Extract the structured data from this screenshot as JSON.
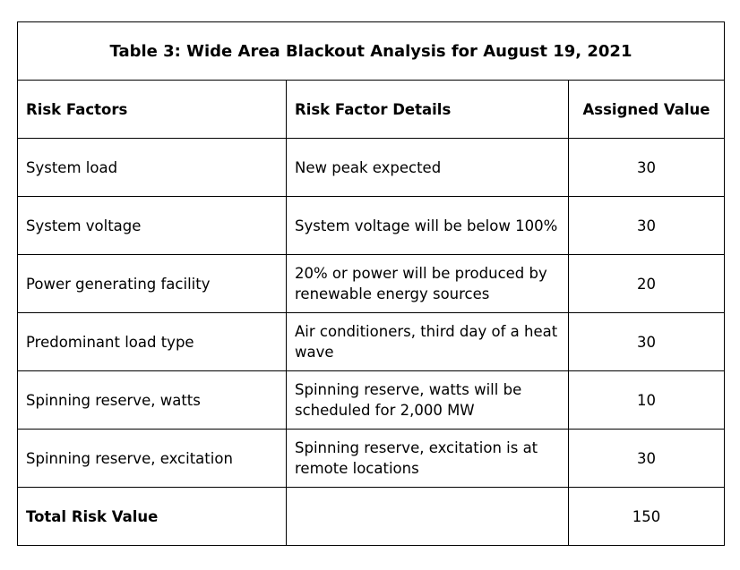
{
  "table": {
    "title": "Table 3: Wide Area Blackout Analysis for August 19, 2021",
    "headers": [
      "Risk Factors",
      "Risk Factor Details",
      "Assigned Value"
    ],
    "rows": [
      {
        "factor": "System load",
        "details": "New peak expected",
        "value": "30"
      },
      {
        "factor": "System voltage",
        "details": "System voltage will be below 100%",
        "value": "30"
      },
      {
        "factor": "Power generating facility",
        "details": "20% or power will be produced by renewable energy sources",
        "value": "20"
      },
      {
        "factor": "Predominant load type",
        "details": "Air conditioners, third day of a heat wave",
        "value": "30"
      },
      {
        "factor": "Spinning reserve, watts",
        "details": "Spinning reserve, watts will be scheduled for 2,000 MW",
        "value": "10"
      },
      {
        "factor": "Spinning reserve, excitation",
        "details": "Spinning reserve, excitation is at remote locations",
        "value": "30"
      }
    ],
    "total": {
      "label": "Total Risk Value",
      "details": "",
      "value": "150"
    }
  }
}
